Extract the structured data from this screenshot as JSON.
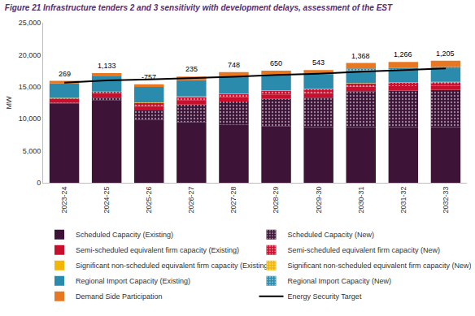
{
  "chart_data": {
    "type": "bar",
    "title": "Figure 21 Infrastructure tenders 2 and 3 sensitivity with development delays, assessment of the EST",
    "y_label": "MW",
    "stacked": true,
    "grid": false,
    "legend": "bottom",
    "categories": [
      "2023-24",
      "2024-25",
      "2025-26",
      "2026-27",
      "2027-28",
      "2028-29",
      "2029-30",
      "2030-31",
      "2031-32",
      "2032-33"
    ],
    "ylim": [
      0,
      25000
    ],
    "yticks": [
      0,
      {
        "value": 5000,
        "label": "5,000"
      },
      {
        "value": 10000,
        "label": "10,000"
      },
      {
        "value": 15000,
        "label": "15,000"
      },
      {
        "value": 20000,
        "label": "20,000"
      },
      {
        "value": 25000,
        "label": "25,000"
      }
    ],
    "series": [
      {
        "name": "Scheduled Capacity (Existing)",
        "color": "#3d1438",
        "values": [
          12400,
          12900,
          9800,
          9500,
          9100,
          8800,
          8700,
          8700,
          8700,
          8700
        ]
      },
      {
        "name": "Scheduled Capacity (New)",
        "color": "#3d1438",
        "marker": "dots",
        "values": [
          100,
          400,
          1500,
          2700,
          3600,
          4300,
          4600,
          5600,
          5700,
          5800
        ]
      },
      {
        "name": "Semi-scheduled equivalent firm capacity (Existing)",
        "color": "#c8102e",
        "values": [
          650,
          700,
          700,
          700,
          700,
          700,
          700,
          700,
          700,
          700
        ]
      },
      {
        "name": "Semi-scheduled equivalent firm capacity (New)",
        "color": "#c8102e",
        "marker": "dots",
        "values": [
          50,
          200,
          500,
          500,
          500,
          600,
          600,
          500,
          500,
          500
        ]
      },
      {
        "name": "Significant non-scheduled equivalent firm capacity (Existing)",
        "color": "#f2b705",
        "values": [
          60,
          60,
          60,
          60,
          60,
          60,
          60,
          60,
          60,
          60
        ]
      },
      {
        "name": "Significant non-scheduled equivalent firm capacity (New)",
        "color": "#f2b705",
        "marker": "dots",
        "values": [
          0,
          0,
          10,
          10,
          10,
          10,
          10,
          10,
          10,
          10
        ]
      },
      {
        "name": "Regional Import Capacity (Existing)",
        "color": "#2b8bad",
        "values": [
          2250,
          2350,
          2400,
          2550,
          2650,
          2450,
          2300,
          2000,
          2000,
          2000
        ]
      },
      {
        "name": "Regional Import Capacity (New)",
        "color": "#2b8bad",
        "marker": "dots",
        "values": [
          0,
          0,
          0,
          0,
          0,
          0,
          0,
          300,
          300,
          300
        ]
      },
      {
        "name": "Demand Side Participation",
        "color": "#e87722",
        "values": [
          409,
          523,
          423,
          565,
          678,
          580,
          623,
          848,
          896,
          985
        ]
      },
      {
        "name": "Energy Security Target",
        "type": "line",
        "color": "#000000",
        "values": [
          15650,
          16000,
          16150,
          16350,
          16550,
          16850,
          17050,
          17350,
          17600,
          17850
        ]
      }
    ],
    "annotations": [
      {
        "category": "2023-24",
        "value": 269,
        "label": "269"
      },
      {
        "category": "2024-25",
        "value": 1133,
        "label": "1,133"
      },
      {
        "category": "2025-26",
        "value": -757,
        "label": "-757"
      },
      {
        "category": "2026-27",
        "value": 235,
        "label": "235"
      },
      {
        "category": "2027-28",
        "value": 748,
        "label": "748"
      },
      {
        "category": "2028-29",
        "value": 650,
        "label": "650"
      },
      {
        "category": "2029-30",
        "value": 543,
        "label": "543"
      },
      {
        "category": "2030-31",
        "value": 1368,
        "label": "1,368"
      },
      {
        "category": "2031-32",
        "value": 1266,
        "label": "1,266"
      },
      {
        "category": "2032-33",
        "value": 1205,
        "label": "1,205"
      }
    ]
  }
}
